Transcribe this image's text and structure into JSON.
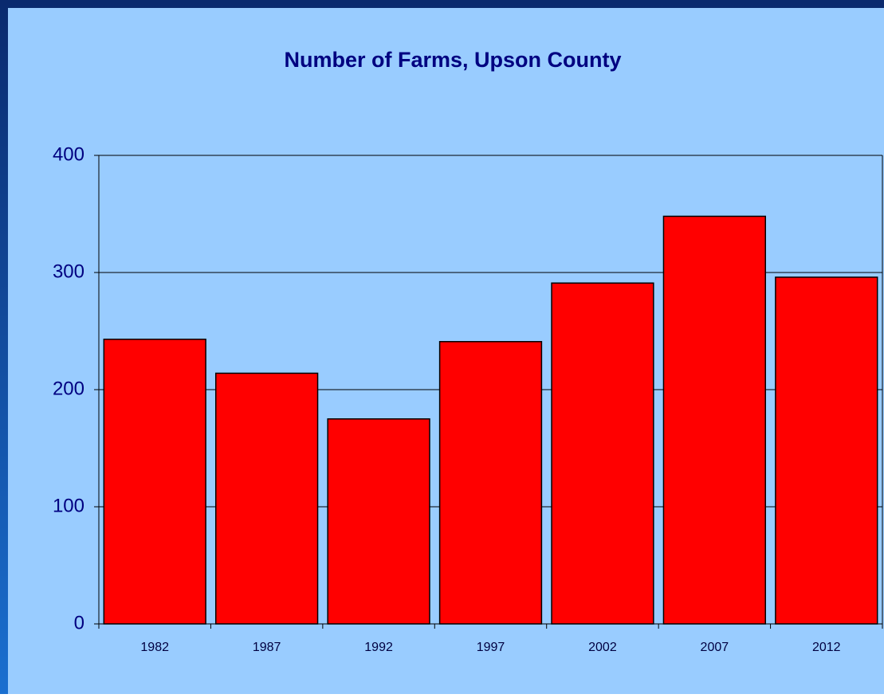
{
  "chart_data": {
    "type": "bar",
    "title": "Number of Farms, Upson County",
    "categories": [
      "1982",
      "1987",
      "1992",
      "1997",
      "2002",
      "2007",
      "2012"
    ],
    "values": [
      243,
      214,
      175,
      241,
      291,
      348,
      296
    ],
    "color": "#ff0000",
    "ylim": [
      0,
      400
    ],
    "yticks": [
      0,
      100,
      200,
      300,
      400
    ],
    "grid": true
  }
}
